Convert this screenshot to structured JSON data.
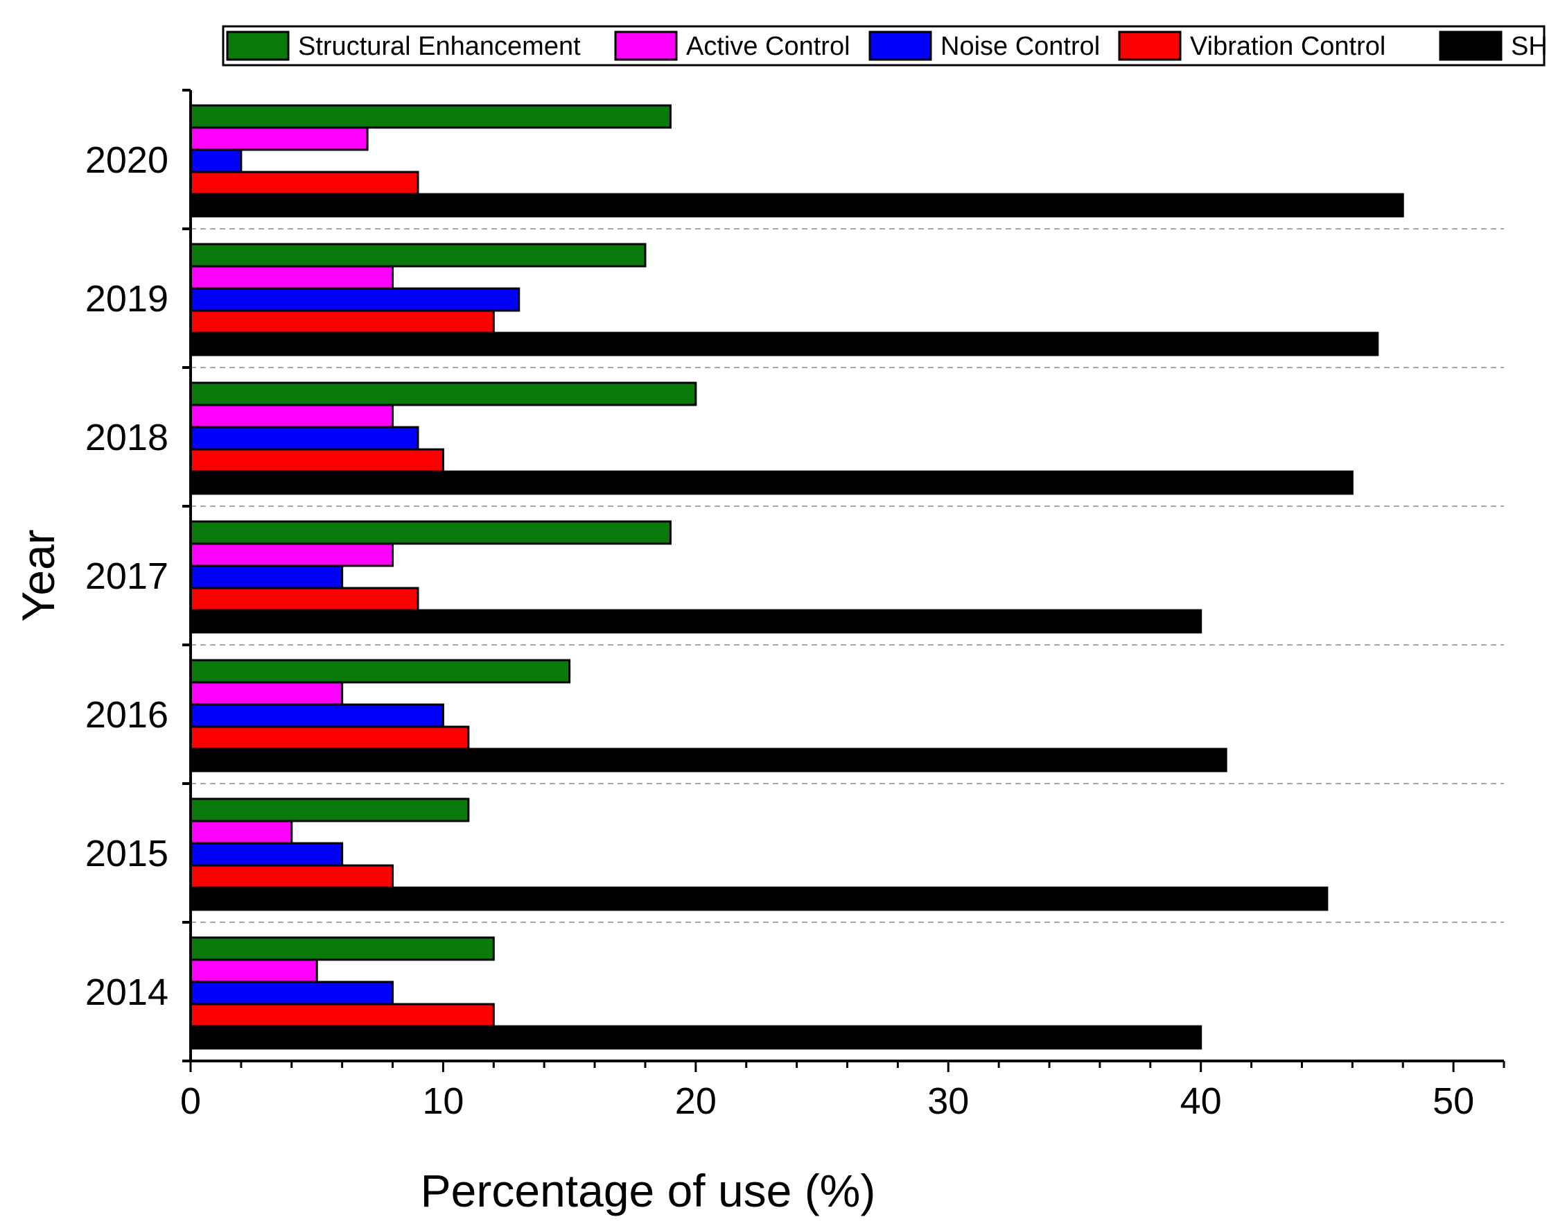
{
  "chart_data": {
    "type": "bar",
    "orientation": "horizontal",
    "title": "",
    "xlabel": "Percentage of use (%)",
    "ylabel": "Year",
    "xlim": [
      0,
      52
    ],
    "xticks": [
      0,
      10,
      20,
      30,
      40,
      50
    ],
    "categories": [
      "2014",
      "2015",
      "2016",
      "2017",
      "2018",
      "2019",
      "2020"
    ],
    "grid": "horizontal dashed separators between years",
    "legend_position": "top",
    "series": [
      {
        "name": "Structural Enhancement",
        "color": "#0a7a0a",
        "values": [
          12,
          11,
          15,
          19,
          20,
          18,
          19
        ]
      },
      {
        "name": "Active Control",
        "color": "#ff00ff",
        "values": [
          5,
          4,
          6,
          8,
          8,
          8,
          7
        ]
      },
      {
        "name": "Noise Control",
        "color": "#0000ff",
        "values": [
          8,
          6,
          10,
          6,
          9,
          13,
          2
        ]
      },
      {
        "name": "Vibration Control",
        "color": "#ff0000",
        "values": [
          12,
          8,
          11,
          9,
          10,
          12,
          9
        ]
      },
      {
        "name": "SHM",
        "color": "#000000",
        "values": [
          40,
          45,
          41,
          40,
          46,
          47,
          48
        ]
      }
    ]
  }
}
